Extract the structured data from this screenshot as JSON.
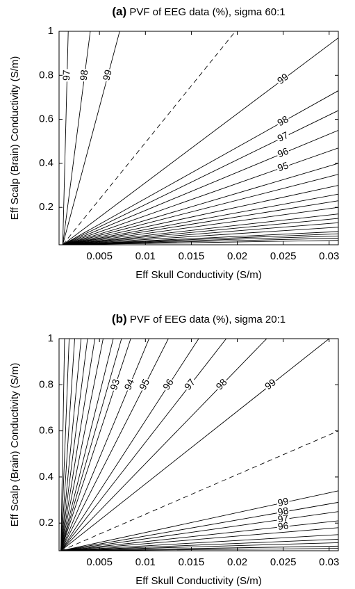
{
  "chart_data": [
    {
      "type": "contour",
      "panel": "(a)",
      "title": "PVF of EEG data (%), sigma 60:1",
      "xlabel": "Eff Skull Conductivity (S/m)",
      "ylabel": "Eff Scalp (Brain) Conductivity (S/m)",
      "xlim": [
        0.0006,
        0.031
      ],
      "ylim": [
        0.03,
        1
      ],
      "xticks": [
        0.005,
        0.01,
        0.015,
        0.02,
        0.025,
        0.03
      ],
      "yticks": [
        0.2,
        0.4,
        0.6,
        0.8,
        1
      ],
      "contours": [
        {
          "level": 97,
          "x": [
            0.001,
            0.0016
          ],
          "values": [
            0.03,
            1
          ]
        },
        {
          "level": 98,
          "x": [
            0.001,
            0.004
          ],
          "values": [
            0.03,
            1
          ]
        },
        {
          "level": 99,
          "x": [
            0.001,
            0.0072
          ],
          "values": [
            0.03,
            1
          ]
        },
        {
          "dashed": true,
          "x": [
            0.001,
            0.0198
          ],
          "values": [
            0.03,
            1
          ]
        },
        {
          "level": 99,
          "x": [
            0.001,
            0.031
          ],
          "values": [
            0.03,
            0.97
          ]
        },
        {
          "level": 98,
          "x": [
            0.001,
            0.031
          ],
          "values": [
            0.03,
            0.73
          ]
        },
        {
          "level": 97,
          "x": [
            0.001,
            0.031
          ],
          "values": [
            0.03,
            0.64
          ]
        },
        {
          "level": 96,
          "x": [
            0.001,
            0.031
          ],
          "values": [
            0.03,
            0.55
          ]
        },
        {
          "level": 95,
          "x": [
            0.001,
            0.031
          ],
          "values": [
            0.03,
            0.47
          ]
        },
        {
          "x": [
            0.001,
            0.031
          ],
          "values": [
            0.03,
            0.4
          ]
        },
        {
          "x": [
            0.001,
            0.031
          ],
          "values": [
            0.03,
            0.35
          ]
        },
        {
          "x": [
            0.001,
            0.031
          ],
          "values": [
            0.03,
            0.3
          ]
        },
        {
          "x": [
            0.001,
            0.031
          ],
          "values": [
            0.03,
            0.26
          ]
        },
        {
          "x": [
            0.001,
            0.031
          ],
          "values": [
            0.03,
            0.23
          ]
        },
        {
          "x": [
            0.001,
            0.031
          ],
          "values": [
            0.03,
            0.2
          ]
        },
        {
          "x": [
            0.001,
            0.031
          ],
          "values": [
            0.03,
            0.17
          ]
        },
        {
          "x": [
            0.001,
            0.031
          ],
          "values": [
            0.03,
            0.15
          ]
        },
        {
          "x": [
            0.001,
            0.031
          ],
          "values": [
            0.03,
            0.13
          ]
        },
        {
          "x": [
            0.001,
            0.031
          ],
          "values": [
            0.03,
            0.11
          ]
        },
        {
          "x": [
            0.001,
            0.031
          ],
          "values": [
            0.03,
            0.09
          ]
        },
        {
          "x": [
            0.001,
            0.031
          ],
          "values": [
            0.03,
            0.08
          ]
        },
        {
          "x": [
            0.001,
            0.031
          ],
          "values": [
            0.03,
            0.07
          ]
        },
        {
          "x": [
            0.001,
            0.031
          ],
          "values": [
            0.03,
            0.06
          ]
        },
        {
          "x": [
            0.001,
            0.031
          ],
          "values": [
            0.03,
            0.05
          ]
        }
      ]
    },
    {
      "type": "contour",
      "panel": "(b)",
      "title": "PVF of EEG data (%), sigma 20:1",
      "xlabel": "Eff Skull Conductivity (S/m)",
      "ylabel": "Eff Scalp (Brain) Conductivity (S/m)",
      "xlim": [
        0.0006,
        0.031
      ],
      "ylim": [
        0.08,
        1
      ],
      "xticks": [
        0.005,
        0.01,
        0.015,
        0.02,
        0.025,
        0.03
      ],
      "yticks": [
        0.2,
        0.4,
        0.6,
        0.8,
        1
      ],
      "contours": [
        {
          "x": [
            0.0008,
            0.0012
          ],
          "values": [
            0.08,
            1
          ]
        },
        {
          "x": [
            0.0008,
            0.0017
          ],
          "values": [
            0.08,
            1
          ]
        },
        {
          "x": [
            0.0008,
            0.0023
          ],
          "values": [
            0.08,
            1
          ]
        },
        {
          "x": [
            0.0008,
            0.003
          ],
          "values": [
            0.08,
            1
          ]
        },
        {
          "x": [
            0.0008,
            0.0037
          ],
          "values": [
            0.08,
            1
          ]
        },
        {
          "x": [
            0.0008,
            0.0045
          ],
          "values": [
            0.08,
            1
          ]
        },
        {
          "x": [
            0.0008,
            0.0054
          ],
          "values": [
            0.08,
            1
          ]
        },
        {
          "x": [
            0.0008,
            0.0065
          ],
          "values": [
            0.08,
            1
          ]
        },
        {
          "x": [
            0.0008,
            0.0074
          ],
          "values": [
            0.08,
            1
          ]
        },
        {
          "level": 93,
          "x": [
            0.0008,
            0.0084
          ],
          "values": [
            0.08,
            1
          ]
        },
        {
          "level": 94,
          "x": [
            0.0008,
            0.0104
          ],
          "values": [
            0.08,
            1
          ]
        },
        {
          "level": 95,
          "x": [
            0.0008,
            0.0125
          ],
          "values": [
            0.08,
            1
          ]
        },
        {
          "level": 96,
          "x": [
            0.0008,
            0.0158
          ],
          "values": [
            0.08,
            1
          ]
        },
        {
          "level": 97,
          "x": [
            0.0008,
            0.0188
          ],
          "values": [
            0.08,
            1
          ]
        },
        {
          "level": 98,
          "x": [
            0.0008,
            0.0232
          ],
          "values": [
            0.08,
            1
          ]
        },
        {
          "level": 99,
          "x": [
            0.0008,
            0.03
          ],
          "values": [
            0.08,
            1
          ]
        },
        {
          "dashed": true,
          "x": [
            0.0008,
            0.031
          ],
          "values": [
            0.08,
            0.6
          ]
        },
        {
          "level": 99,
          "x": [
            0.0008,
            0.031
          ],
          "values": [
            0.08,
            0.34
          ]
        },
        {
          "level": 98,
          "x": [
            0.0008,
            0.031
          ],
          "values": [
            0.08,
            0.29
          ]
        },
        {
          "level": 97,
          "x": [
            0.0008,
            0.031
          ],
          "values": [
            0.08,
            0.25
          ]
        },
        {
          "level": 96,
          "x": [
            0.0008,
            0.031
          ],
          "values": [
            0.08,
            0.21
          ]
        },
        {
          "x": [
            0.0008,
            0.031
          ],
          "values": [
            0.08,
            0.18
          ]
        },
        {
          "x": [
            0.0008,
            0.031
          ],
          "values": [
            0.08,
            0.15
          ]
        },
        {
          "x": [
            0.0008,
            0.031
          ],
          "values": [
            0.08,
            0.13
          ]
        },
        {
          "x": [
            0.0008,
            0.031
          ],
          "values": [
            0.08,
            0.115
          ]
        },
        {
          "x": [
            0.0008,
            0.031
          ],
          "values": [
            0.08,
            0.1
          ]
        },
        {
          "x": [
            0.0008,
            0.031
          ],
          "values": [
            0.08,
            0.09
          ]
        }
      ]
    }
  ]
}
